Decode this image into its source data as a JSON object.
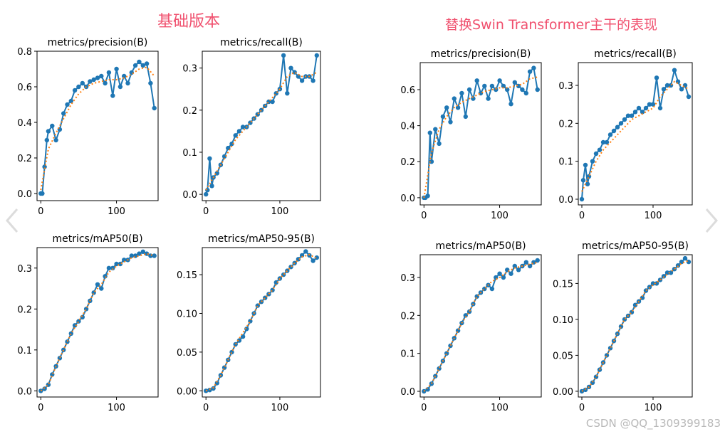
{
  "groups": [
    {
      "title": "基础版本"
    },
    {
      "title": "替换Swin Transformer主干的表现"
    }
  ],
  "watermark": "CSDN @QQ_1309399183",
  "colors": {
    "results": "#1f77b4",
    "smooth": "#ff7f0e",
    "title_accent": "#f0506e"
  },
  "icons": {
    "left": "chevron-left-icon",
    "right": "chevron-right-icon"
  },
  "chart_data": [
    {
      "type": "line",
      "group": 0,
      "title": "metrics/precision(B)",
      "xlabel": "",
      "ylabel": "",
      "xlim": [
        -5,
        155
      ],
      "ylim": [
        -0.04,
        0.8
      ],
      "xticks": [
        0,
        100
      ],
      "yticks": [
        0.0,
        0.2,
        0.4,
        0.6,
        0.8
      ],
      "ytick_labels": [
        "0.0",
        "0.2",
        "0.4",
        "0.6",
        "0.8"
      ],
      "series": [
        {
          "style": "points",
          "x": [
            0,
            2,
            5,
            8,
            10,
            15,
            20,
            25,
            30,
            35,
            40,
            45,
            50,
            55,
            60,
            65,
            70,
            75,
            80,
            85,
            90,
            95,
            100,
            105,
            110,
            115,
            120,
            125,
            130,
            135,
            140,
            145,
            150
          ],
          "y": [
            0.0,
            0.0,
            0.15,
            0.3,
            0.35,
            0.38,
            0.3,
            0.36,
            0.45,
            0.5,
            0.52,
            0.58,
            0.6,
            0.62,
            0.6,
            0.63,
            0.64,
            0.65,
            0.66,
            0.62,
            0.68,
            0.55,
            0.7,
            0.6,
            0.66,
            0.62,
            0.68,
            0.72,
            0.74,
            0.72,
            0.73,
            0.62,
            0.48
          ]
        },
        {
          "style": "smooth",
          "x": [
            0,
            10,
            20,
            30,
            40,
            50,
            60,
            70,
            80,
            90,
            100,
            110,
            120,
            130,
            140,
            150
          ],
          "y": [
            0.02,
            0.25,
            0.34,
            0.42,
            0.5,
            0.56,
            0.6,
            0.62,
            0.63,
            0.64,
            0.64,
            0.65,
            0.67,
            0.7,
            0.71,
            0.66
          ]
        }
      ]
    },
    {
      "type": "line",
      "group": 0,
      "title": "metrics/recall(B)",
      "xlabel": "",
      "ylabel": "",
      "xlim": [
        -5,
        155
      ],
      "ylim": [
        -0.015,
        0.34
      ],
      "xticks": [
        0,
        100
      ],
      "yticks": [
        0.0,
        0.1,
        0.2,
        0.3
      ],
      "ytick_labels": [
        "0.0",
        "0.1",
        "0.2",
        "0.3"
      ],
      "series": [
        {
          "style": "points",
          "x": [
            0,
            2,
            5,
            8,
            10,
            15,
            20,
            25,
            30,
            35,
            40,
            45,
            50,
            55,
            60,
            65,
            70,
            75,
            80,
            85,
            90,
            95,
            100,
            105,
            110,
            115,
            120,
            125,
            130,
            135,
            140,
            145,
            150
          ],
          "y": [
            0.0,
            0.01,
            0.085,
            0.02,
            0.04,
            0.05,
            0.07,
            0.09,
            0.11,
            0.12,
            0.14,
            0.15,
            0.16,
            0.16,
            0.17,
            0.18,
            0.19,
            0.2,
            0.21,
            0.22,
            0.22,
            0.24,
            0.25,
            0.33,
            0.24,
            0.3,
            0.29,
            0.28,
            0.27,
            0.28,
            0.28,
            0.27,
            0.33
          ]
        },
        {
          "style": "smooth",
          "x": [
            0,
            10,
            20,
            30,
            40,
            50,
            60,
            70,
            80,
            90,
            100,
            110,
            120,
            130,
            140,
            150
          ],
          "y": [
            0.01,
            0.04,
            0.07,
            0.1,
            0.13,
            0.15,
            0.17,
            0.19,
            0.21,
            0.23,
            0.25,
            0.28,
            0.29,
            0.28,
            0.28,
            0.29
          ]
        }
      ]
    },
    {
      "type": "line",
      "group": 0,
      "title": "metrics/mAP50(B)",
      "xlabel": "",
      "ylabel": "",
      "xlim": [
        -5,
        155
      ],
      "ylim": [
        -0.015,
        0.35
      ],
      "xticks": [
        0,
        100
      ],
      "yticks": [
        0.0,
        0.1,
        0.2,
        0.3
      ],
      "ytick_labels": [
        "0.0",
        "0.1",
        "0.2",
        "0.3"
      ],
      "series": [
        {
          "style": "points",
          "x": [
            0,
            5,
            10,
            15,
            20,
            25,
            30,
            35,
            40,
            45,
            50,
            55,
            60,
            65,
            70,
            75,
            80,
            85,
            90,
            95,
            100,
            105,
            110,
            115,
            120,
            125,
            130,
            135,
            140,
            145,
            150
          ],
          "y": [
            0.0,
            0.005,
            0.015,
            0.04,
            0.06,
            0.08,
            0.1,
            0.12,
            0.14,
            0.16,
            0.17,
            0.18,
            0.2,
            0.22,
            0.24,
            0.26,
            0.25,
            0.28,
            0.3,
            0.3,
            0.31,
            0.31,
            0.32,
            0.32,
            0.33,
            0.33,
            0.335,
            0.34,
            0.335,
            0.33,
            0.33
          ]
        },
        {
          "style": "smooth",
          "x": [
            0,
            10,
            20,
            30,
            40,
            50,
            60,
            70,
            80,
            90,
            100,
            110,
            120,
            130,
            140,
            150
          ],
          "y": [
            0.0,
            0.015,
            0.06,
            0.1,
            0.14,
            0.17,
            0.2,
            0.24,
            0.26,
            0.29,
            0.305,
            0.315,
            0.325,
            0.33,
            0.335,
            0.33
          ]
        }
      ]
    },
    {
      "type": "line",
      "group": 0,
      "title": "metrics/mAP50-95(B)",
      "xlabel": "",
      "ylabel": "",
      "xlim": [
        -5,
        155
      ],
      "ylim": [
        -0.008,
        0.185
      ],
      "xticks": [
        0,
        100
      ],
      "yticks": [
        0.0,
        0.05,
        0.1,
        0.15
      ],
      "ytick_labels": [
        "0.00",
        "0.05",
        "0.10",
        "0.15"
      ],
      "series": [
        {
          "style": "points",
          "x": [
            0,
            5,
            10,
            15,
            20,
            25,
            30,
            35,
            40,
            45,
            50,
            55,
            60,
            65,
            70,
            75,
            80,
            85,
            90,
            95,
            100,
            105,
            110,
            115,
            120,
            125,
            130,
            135,
            140,
            145,
            150
          ],
          "y": [
            0.0,
            0.001,
            0.003,
            0.01,
            0.02,
            0.03,
            0.04,
            0.05,
            0.06,
            0.065,
            0.07,
            0.08,
            0.09,
            0.1,
            0.11,
            0.115,
            0.12,
            0.125,
            0.13,
            0.14,
            0.145,
            0.15,
            0.155,
            0.16,
            0.165,
            0.17,
            0.175,
            0.18,
            0.175,
            0.168,
            0.172
          ]
        },
        {
          "style": "smooth",
          "x": [
            0,
            10,
            20,
            30,
            40,
            50,
            60,
            70,
            80,
            90,
            100,
            110,
            120,
            130,
            140,
            150
          ],
          "y": [
            0.0,
            0.004,
            0.02,
            0.04,
            0.06,
            0.075,
            0.09,
            0.11,
            0.12,
            0.13,
            0.145,
            0.155,
            0.165,
            0.173,
            0.176,
            0.171
          ]
        }
      ]
    },
    {
      "type": "line",
      "group": 1,
      "title": "metrics/precision(B)",
      "xlabel": "",
      "ylabel": "",
      "xlim": [
        -5,
        155
      ],
      "ylim": [
        -0.04,
        0.75
      ],
      "xticks": [
        0,
        100
      ],
      "yticks": [
        0.0,
        0.2,
        0.4,
        0.6
      ],
      "ytick_labels": [
        "0.0",
        "0.2",
        "0.4",
        "0.6"
      ],
      "series": [
        {
          "style": "points",
          "x": [
            0,
            2,
            5,
            8,
            10,
            15,
            20,
            25,
            30,
            35,
            40,
            45,
            50,
            55,
            60,
            65,
            70,
            75,
            80,
            85,
            90,
            95,
            100,
            105,
            110,
            115,
            120,
            125,
            130,
            135,
            140,
            145,
            150
          ],
          "y": [
            0.0,
            0.0,
            0.01,
            0.36,
            0.2,
            0.38,
            0.3,
            0.45,
            0.5,
            0.42,
            0.55,
            0.5,
            0.58,
            0.45,
            0.6,
            0.55,
            0.65,
            0.58,
            0.62,
            0.55,
            0.62,
            0.6,
            0.65,
            0.62,
            0.6,
            0.52,
            0.64,
            0.62,
            0.6,
            0.58,
            0.7,
            0.72,
            0.6
          ]
        },
        {
          "style": "smooth",
          "x": [
            0,
            10,
            20,
            30,
            40,
            50,
            60,
            70,
            80,
            90,
            100,
            110,
            120,
            130,
            140,
            150
          ],
          "y": [
            0.0,
            0.25,
            0.38,
            0.45,
            0.5,
            0.53,
            0.55,
            0.57,
            0.59,
            0.6,
            0.61,
            0.61,
            0.62,
            0.63,
            0.66,
            0.67
          ]
        }
      ]
    },
    {
      "type": "line",
      "group": 1,
      "title": "metrics/recall(B)",
      "xlabel": "",
      "ylabel": "",
      "xlim": [
        -5,
        155
      ],
      "ylim": [
        -0.015,
        0.36
      ],
      "xticks": [
        0,
        100
      ],
      "yticks": [
        0.0,
        0.1,
        0.2,
        0.3
      ],
      "ytick_labels": [
        "0.0",
        "0.1",
        "0.2",
        "0.3"
      ],
      "series": [
        {
          "style": "points",
          "x": [
            0,
            2,
            5,
            8,
            10,
            15,
            20,
            25,
            30,
            35,
            40,
            45,
            50,
            55,
            60,
            65,
            70,
            75,
            80,
            85,
            90,
            95,
            100,
            105,
            110,
            115,
            120,
            125,
            130,
            135,
            140,
            145,
            150
          ],
          "y": [
            0.0,
            0.05,
            0.09,
            0.04,
            0.06,
            0.1,
            0.12,
            0.13,
            0.15,
            0.15,
            0.17,
            0.18,
            0.19,
            0.2,
            0.21,
            0.22,
            0.22,
            0.23,
            0.24,
            0.23,
            0.24,
            0.25,
            0.25,
            0.32,
            0.24,
            0.29,
            0.3,
            0.3,
            0.34,
            0.31,
            0.29,
            0.3,
            0.27
          ]
        },
        {
          "style": "smooth",
          "x": [
            0,
            10,
            20,
            30,
            40,
            50,
            60,
            70,
            80,
            90,
            100,
            110,
            120,
            130,
            140,
            150
          ],
          "y": [
            0.02,
            0.06,
            0.1,
            0.13,
            0.15,
            0.17,
            0.19,
            0.21,
            0.22,
            0.23,
            0.24,
            0.27,
            0.29,
            0.31,
            0.3,
            0.29
          ]
        }
      ]
    },
    {
      "type": "line",
      "group": 1,
      "title": "metrics/mAP50(B)",
      "xlabel": "",
      "ylabel": "",
      "xlim": [
        -5,
        155
      ],
      "ylim": [
        -0.015,
        0.36
      ],
      "xticks": [
        0,
        100
      ],
      "yticks": [
        0.0,
        0.1,
        0.2,
        0.3
      ],
      "ytick_labels": [
        "0.0",
        "0.1",
        "0.2",
        "0.3"
      ],
      "series": [
        {
          "style": "points",
          "x": [
            0,
            5,
            10,
            15,
            20,
            25,
            30,
            35,
            40,
            45,
            50,
            55,
            60,
            65,
            70,
            75,
            80,
            85,
            90,
            95,
            100,
            105,
            110,
            115,
            120,
            125,
            130,
            135,
            140,
            145,
            150
          ],
          "y": [
            0.0,
            0.005,
            0.02,
            0.04,
            0.06,
            0.08,
            0.1,
            0.12,
            0.14,
            0.16,
            0.18,
            0.2,
            0.21,
            0.23,
            0.25,
            0.26,
            0.27,
            0.28,
            0.27,
            0.3,
            0.31,
            0.3,
            0.32,
            0.31,
            0.33,
            0.32,
            0.33,
            0.34,
            0.33,
            0.34,
            0.345
          ]
        },
        {
          "style": "smooth",
          "x": [
            0,
            10,
            20,
            30,
            40,
            50,
            60,
            70,
            80,
            90,
            100,
            110,
            120,
            130,
            140,
            150
          ],
          "y": [
            0.0,
            0.02,
            0.06,
            0.1,
            0.14,
            0.18,
            0.21,
            0.25,
            0.27,
            0.29,
            0.3,
            0.315,
            0.325,
            0.33,
            0.335,
            0.34
          ]
        }
      ]
    },
    {
      "type": "line",
      "group": 1,
      "title": "metrics/mAP50-95(B)",
      "xlabel": "",
      "ylabel": "",
      "xlim": [
        -5,
        155
      ],
      "ylim": [
        -0.008,
        0.19
      ],
      "xticks": [
        0,
        100
      ],
      "yticks": [
        0.0,
        0.05,
        0.1,
        0.15
      ],
      "ytick_labels": [
        "0.00",
        "0.05",
        "0.10",
        "0.15"
      ],
      "series": [
        {
          "style": "points",
          "x": [
            0,
            5,
            10,
            15,
            20,
            25,
            30,
            35,
            40,
            45,
            50,
            55,
            60,
            65,
            70,
            75,
            80,
            85,
            90,
            95,
            100,
            105,
            110,
            115,
            120,
            125,
            130,
            135,
            140,
            145,
            150
          ],
          "y": [
            0.0,
            0.002,
            0.006,
            0.012,
            0.02,
            0.03,
            0.04,
            0.05,
            0.06,
            0.07,
            0.08,
            0.09,
            0.1,
            0.105,
            0.11,
            0.12,
            0.125,
            0.13,
            0.14,
            0.145,
            0.15,
            0.15,
            0.155,
            0.16,
            0.165,
            0.165,
            0.17,
            0.175,
            0.18,
            0.185,
            0.18
          ]
        },
        {
          "style": "smooth",
          "x": [
            0,
            10,
            20,
            30,
            40,
            50,
            60,
            70,
            80,
            90,
            100,
            110,
            120,
            130,
            140,
            150
          ],
          "y": [
            0.0,
            0.006,
            0.02,
            0.04,
            0.06,
            0.08,
            0.1,
            0.11,
            0.125,
            0.14,
            0.148,
            0.155,
            0.163,
            0.17,
            0.178,
            0.182
          ]
        }
      ]
    }
  ]
}
